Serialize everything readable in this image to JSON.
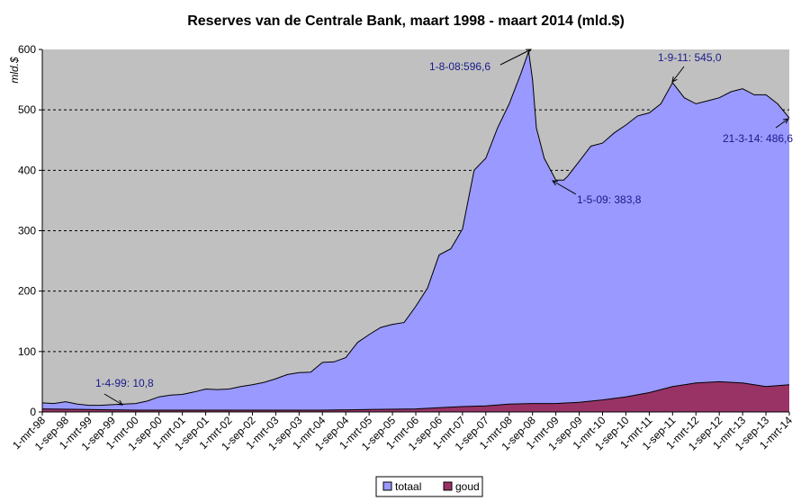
{
  "chart_data": {
    "type": "area",
    "title": "Reserves van de Centrale Bank, maart 1998 - maart 2014 (mld.$)",
    "ylabel": "mld.$",
    "xlabel": "",
    "ylim": [
      0,
      600
    ],
    "yticks": [
      0,
      100,
      200,
      300,
      400,
      500,
      600
    ],
    "grid": "horizontal dashed",
    "plot_background": "#c0c0c0",
    "legend_position": "bottom",
    "x_start": "1998-03",
    "x_end": "2014-03",
    "xtick_labels": [
      "1-mrt-98",
      "1-sep-98",
      "1-mrt-99",
      "1-sep-99",
      "1-mrt-00",
      "1-sep-00",
      "1-mrt-01",
      "1-sep-01",
      "1-mrt-02",
      "1-sep-02",
      "1-mrt-03",
      "1-sep-03",
      "1-mrt-04",
      "1-sep-04",
      "1-mrt-05",
      "1-sep-05",
      "1-mrt-06",
      "1-sep-06",
      "1-mrt-07",
      "1-sep-07",
      "1-mrt-08",
      "1-sep-08",
      "1-mrt-09",
      "1-sep-09",
      "1-mrt-10",
      "1-sep-10",
      "1-mrt-11",
      "1-sep-11",
      "1-mrt-12",
      "1-sep-12",
      "1-mrt-13",
      "1-sep-13",
      "1-mrt-14"
    ],
    "series": [
      {
        "name": "totaal",
        "color": "#9999ff",
        "x": [
          "1998-03",
          "1998-06",
          "1998-09",
          "1998-12",
          "1999-03",
          "1999-06",
          "1999-09",
          "1999-12",
          "2000-03",
          "2000-06",
          "2000-09",
          "2000-12",
          "2001-03",
          "2001-06",
          "2001-09",
          "2001-12",
          "2002-03",
          "2002-06",
          "2002-09",
          "2002-12",
          "2003-03",
          "2003-06",
          "2003-09",
          "2003-12",
          "2004-03",
          "2004-06",
          "2004-09",
          "2004-12",
          "2005-03",
          "2005-06",
          "2005-09",
          "2005-12",
          "2006-03",
          "2006-06",
          "2006-09",
          "2006-12",
          "2007-03",
          "2007-06",
          "2007-09",
          "2007-12",
          "2008-03",
          "2008-06",
          "2008-08",
          "2008-09",
          "2008-10",
          "2008-12",
          "2009-03",
          "2009-05",
          "2009-06",
          "2009-09",
          "2009-12",
          "2010-03",
          "2010-06",
          "2010-09",
          "2010-12",
          "2011-03",
          "2011-06",
          "2011-09",
          "2011-12",
          "2012-03",
          "2012-06",
          "2012-09",
          "2012-12",
          "2013-03",
          "2013-06",
          "2013-09",
          "2013-12",
          "2014-03"
        ],
        "y": [
          15,
          14,
          17,
          13,
          11,
          11,
          12,
          13,
          14,
          18,
          25,
          28,
          29,
          33,
          38,
          37,
          38,
          42,
          45,
          49,
          55,
          62,
          65,
          66,
          82,
          83,
          90,
          115,
          128,
          140,
          145,
          148,
          175,
          205,
          260,
          270,
          303,
          400,
          420,
          470,
          510,
          560,
          596.6,
          550,
          470,
          420,
          383.8,
          383.8,
          390,
          415,
          440,
          445,
          462,
          475,
          490,
          495,
          510,
          545,
          520,
          510,
          515,
          520,
          530,
          535,
          525,
          525,
          510,
          486.6
        ]
      },
      {
        "name": "goud",
        "color": "#993366",
        "x": [
          "1998-03",
          "1999-03",
          "2000-03",
          "2001-03",
          "2002-03",
          "2003-03",
          "2004-03",
          "2005-03",
          "2006-03",
          "2006-09",
          "2007-03",
          "2007-09",
          "2008-03",
          "2008-09",
          "2009-03",
          "2009-09",
          "2010-03",
          "2010-09",
          "2011-03",
          "2011-09",
          "2012-03",
          "2012-09",
          "2013-03",
          "2013-09",
          "2014-03"
        ],
        "y": [
          5,
          4,
          3,
          3,
          3,
          3,
          3,
          4,
          5,
          7,
          9,
          10,
          13,
          14,
          14,
          16,
          20,
          25,
          32,
          42,
          48,
          50,
          48,
          42,
          45
        ]
      }
    ],
    "annotations": [
      {
        "text": "1-4-99: 10,8"
      },
      {
        "text": "1-8-08:596,6"
      },
      {
        "text": "1-5-09: 383,8"
      },
      {
        "text": "1-9-11: 545,0"
      },
      {
        "text": "21-3-14: 486,6"
      }
    ]
  }
}
